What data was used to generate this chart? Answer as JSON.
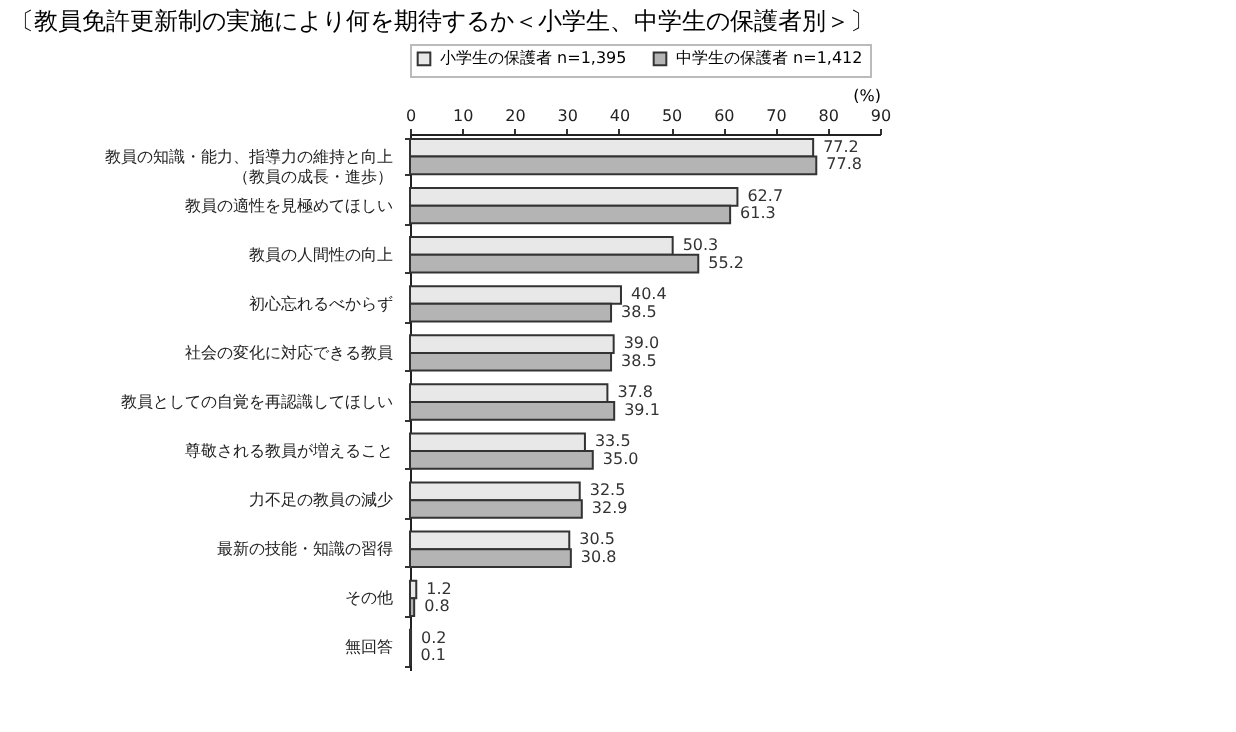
{
  "chart_data": {
    "type": "bar",
    "orientation": "horizontal",
    "title": "〔教員免許更新制の実施により何を期待するか＜小学生、中学生の保護者別＞〕",
    "xlabel": "(%)",
    "categories": [
      "教員の知識・能力、指導力の維持と向上（教員の成長・進歩）",
      "教員の適性を見極めてほしい",
      "教員の人間性の向上",
      "初心忘れるべからず",
      "社会の変化に対応できる教員",
      "教員としての自覚を再認識してほしい",
      "尊敬される教員が増えること",
      "力不足の教員の減少",
      "最新の技能・知識の習得",
      "その他",
      "無回答"
    ],
    "series": [
      {
        "name": "小学生の保護者 n=1,395",
        "color": "#e8e8e8",
        "values": [
          77.2,
          62.7,
          50.3,
          40.4,
          39.0,
          37.8,
          33.5,
          32.5,
          30.5,
          1.2,
          0.2
        ],
        "value_labels": [
          "77.2",
          "62.7",
          "50.3",
          "40.4",
          "39.0",
          "37.8",
          "33.5",
          "32.5",
          "30.5",
          "1.2",
          "0.2"
        ]
      },
      {
        "name": "中学生の保護者 n=1,412",
        "color": "#b4b4b4",
        "values": [
          77.8,
          61.3,
          55.2,
          38.5,
          38.5,
          39.1,
          35.0,
          32.9,
          30.8,
          0.8,
          0.1
        ],
        "value_labels": [
          "77.8",
          "61.3",
          "55.2",
          "38.5",
          "38.5",
          "39.1",
          "35.0",
          "32.9",
          "30.8",
          "0.8",
          "0.1"
        ]
      }
    ],
    "xlim": [
      0,
      90
    ],
    "xticks": [
      0,
      10,
      20,
      30,
      40,
      50,
      60,
      70,
      80,
      90
    ],
    "grid": false,
    "legend": "top"
  }
}
